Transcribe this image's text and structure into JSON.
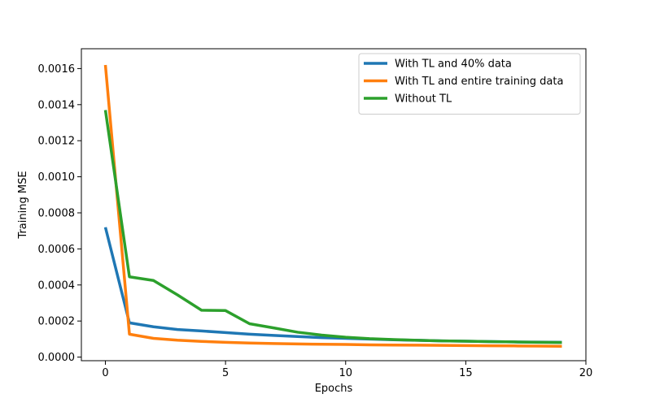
{
  "chart_data": {
    "type": "line",
    "title": "",
    "xlabel": "Epochs",
    "ylabel": "Training MSE",
    "xlim": [
      -1,
      20
    ],
    "ylim": [
      -2e-05,
      0.00171
    ],
    "xticks": [
      0,
      5,
      10,
      15,
      20
    ],
    "xtick_labels": [
      "0",
      "5",
      "10",
      "15",
      "20"
    ],
    "yticks": [
      0,
      0.0002,
      0.0004,
      0.0006,
      0.0008,
      0.001,
      0.0012,
      0.0014,
      0.0016
    ],
    "ytick_labels": [
      "0.0000",
      "0.0002",
      "0.0004",
      "0.0006",
      "0.0008",
      "0.0010",
      "0.0012",
      "0.0014",
      "0.0016"
    ],
    "grid": false,
    "legend_position": "top-right",
    "x": [
      0,
      1,
      2,
      3,
      4,
      5,
      6,
      7,
      8,
      9,
      10,
      11,
      12,
      13,
      14,
      15,
      16,
      17,
      18,
      19
    ],
    "series": [
      {
        "name": "With TL and 40% data",
        "color": "#1f77b4",
        "values": [
          0.00072,
          0.00019,
          0.000168,
          0.000153,
          0.000145,
          0.000136,
          0.000127,
          0.00012,
          0.000114,
          0.000108,
          0.000104,
          0.0001,
          9.6e-05,
          9.3e-05,
          9e-05,
          8.8e-05,
          8.6e-05,
          8.4e-05,
          8.3e-05,
          8.2e-05
        ]
      },
      {
        "name": "With TL and entire training data",
        "color": "#ff7f0e",
        "values": [
          0.00162,
          0.000127,
          0.000104,
          9.4e-05,
          8.7e-05,
          8.2e-05,
          7.8e-05,
          7.5e-05,
          7.3e-05,
          7.1e-05,
          7e-05,
          6.8e-05,
          6.7e-05,
          6.6e-05,
          6.5e-05,
          6.4e-05,
          6.3e-05,
          6.2e-05,
          6.1e-05,
          6e-05
        ]
      },
      {
        "name": "Without TL",
        "color": "#2ca02c",
        "values": [
          0.00137,
          0.000445,
          0.000425,
          0.000345,
          0.00026,
          0.000258,
          0.000185,
          0.000162,
          0.000138,
          0.000122,
          0.00011,
          0.000102,
          9.7e-05,
          9.3e-05,
          9e-05,
          8.8e-05,
          8.6e-05,
          8.4e-05,
          8.2e-05,
          8.1e-05
        ]
      }
    ]
  }
}
